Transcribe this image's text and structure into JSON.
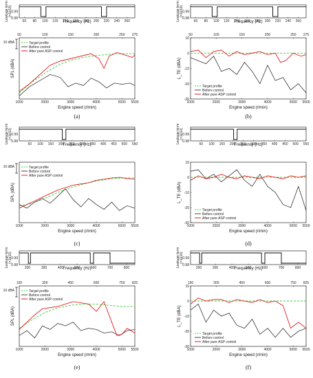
{
  "figure_labels": [
    "(a)",
    "(b)",
    "(c)",
    "(d)",
    "(e)",
    "(f)"
  ],
  "common": {
    "leakage_label": "Leakage term",
    "leakage_sub": "(×1e10)",
    "freq_label": "Frequency (Hz)",
    "engine_label": "Engine speed (r/min)",
    "spl_label": "SPL (dBA)",
    "lte_label": "L_TE (dBA)",
    "scale_marker": "10 dBA",
    "legend_left": [
      "Target profile",
      "Before control",
      "After pure ASP control"
    ],
    "legend_right": [
      "Target profile",
      "Before control",
      "After pure ASP control"
    ],
    "colors": {
      "target": "#33cc33",
      "before": "#333333",
      "after": "#e00000"
    }
  },
  "chart_data": [
    {
      "panel": "(a)",
      "type": "line",
      "leakage": {
        "xlim": [
          50,
          275
        ],
        "ticks": [
          60,
          80,
          100,
          120,
          140,
          160,
          180,
          200,
          220,
          240,
          260
        ],
        "ylim": [
          0.98,
          1.0
        ],
        "yticks": [
          0.98,
          0.99
        ],
        "dips": [
          [
            92,
            102
          ],
          [
            210,
            220
          ]
        ]
      },
      "freq_top_ticks": [
        50,
        100,
        150,
        200,
        250,
        275
      ],
      "xlim": [
        1000,
        5500
      ],
      "xticks": [
        1000,
        2000,
        3000,
        4000,
        5000,
        5500
      ],
      "series": [
        {
          "name": "Target profile",
          "x": [
            1000,
            1500,
            2000,
            2500,
            3000,
            3500,
            4000,
            4500,
            5000,
            5500
          ],
          "y": [
            0.1,
            0.28,
            0.42,
            0.55,
            0.63,
            0.68,
            0.71,
            0.73,
            0.74,
            0.74
          ]
        },
        {
          "name": "Before control",
          "x": [
            1000,
            1400,
            1800,
            2200,
            2600,
            2900,
            3200,
            3500,
            3800,
            4100,
            4400,
            4700,
            5000,
            5300,
            5500
          ],
          "y": [
            0.05,
            0.2,
            0.3,
            0.4,
            0.35,
            0.2,
            0.26,
            0.22,
            0.34,
            0.28,
            0.18,
            0.26,
            0.24,
            0.26,
            0.22
          ]
        },
        {
          "name": "After pure ASP control",
          "x": [
            1000,
            1400,
            1800,
            2200,
            2600,
            3000,
            3400,
            3800,
            4100,
            4300,
            4500,
            4800,
            5100,
            5400,
            5500
          ],
          "y": [
            0.12,
            0.25,
            0.4,
            0.55,
            0.62,
            0.66,
            0.7,
            0.74,
            0.66,
            0.5,
            0.7,
            0.76,
            0.72,
            0.68,
            0.72
          ]
        }
      ]
    },
    {
      "panel": "(b)",
      "type": "line",
      "leakage": {
        "xlim": [
          50,
          275
        ],
        "ticks": [
          60,
          80,
          100,
          120,
          140,
          160,
          180,
          200,
          220,
          240,
          260
        ],
        "ylim": [
          0.98,
          1.0
        ],
        "yticks": [
          0.98,
          0.99
        ],
        "dips": [
          [
            92,
            102
          ],
          [
            210,
            220
          ]
        ]
      },
      "freq_top_ticks": [
        50,
        100,
        150,
        200,
        250,
        275
      ],
      "xlim": [
        1000,
        5500
      ],
      "xticks": [
        1000,
        2000,
        3000,
        4000,
        5000,
        5500
      ],
      "ylim": [
        -30,
        10
      ],
      "yticks": [
        10,
        0,
        -10,
        -20,
        -30
      ],
      "series": [
        {
          "name": "Target profile",
          "x": [
            1000,
            5500
          ],
          "y": [
            0,
            0
          ]
        },
        {
          "name": "Before control",
          "x": [
            1000,
            1300,
            1600,
            1900,
            2200,
            2500,
            2800,
            3100,
            3400,
            3700,
            4000,
            4300,
            4600,
            4900,
            5200,
            5500
          ],
          "y": [
            -3,
            -5,
            -7,
            -2,
            -12,
            -10,
            -14,
            -6,
            -12,
            -20,
            -8,
            -18,
            -16,
            -24,
            -20,
            -26
          ]
        },
        {
          "name": "After pure ASP control",
          "x": [
            1000,
            1300,
            1600,
            1900,
            2200,
            2500,
            2800,
            3100,
            3400,
            3700,
            4000,
            4300,
            4500,
            4700,
            5000,
            5300,
            5500
          ],
          "y": [
            1,
            2,
            -3,
            1,
            2,
            -2,
            1,
            -1,
            0,
            1,
            -1,
            0,
            -6,
            -5,
            0,
            -2,
            -1
          ]
        }
      ]
    },
    {
      "panel": "(c)",
      "type": "line",
      "leakage": {
        "xlim": [
          0,
          550
        ],
        "ticks": [
          50,
          100,
          150,
          200,
          250,
          300,
          350,
          400,
          450,
          500,
          550
        ],
        "ylim": [
          0.98,
          1.0
        ],
        "yticks": [
          0.98,
          0.99
        ],
        "dips": [
          [
            205,
            222
          ]
        ]
      },
      "freq_top_ticks": [],
      "xlim": [
        1000,
        5500
      ],
      "xticks": [
        1000,
        2000,
        3000,
        4000,
        5000,
        5500
      ],
      "series": [
        {
          "name": "Target profile",
          "x": [
            1000,
            1500,
            2000,
            2500,
            3000,
            3500,
            4000,
            4500,
            5000,
            5500
          ],
          "y": [
            0.28,
            0.32,
            0.4,
            0.5,
            0.58,
            0.64,
            0.69,
            0.72,
            0.74,
            0.74
          ]
        },
        {
          "name": "Before control",
          "x": [
            1000,
            1300,
            1600,
            1900,
            2200,
            2500,
            2800,
            3100,
            3400,
            3700,
            4000,
            4300,
            4600,
            4900,
            5200,
            5500
          ],
          "y": [
            0.3,
            0.24,
            0.34,
            0.4,
            0.32,
            0.44,
            0.56,
            0.38,
            0.26,
            0.4,
            0.3,
            0.22,
            0.34,
            0.2,
            0.28,
            0.24
          ]
        },
        {
          "name": "After pure ASP control",
          "x": [
            1000,
            1300,
            1600,
            1900,
            2200,
            2500,
            2800,
            3100,
            3400,
            3700,
            4000,
            4300,
            4600,
            4900,
            5200,
            5500
          ],
          "y": [
            0.24,
            0.3,
            0.36,
            0.42,
            0.48,
            0.54,
            0.58,
            0.62,
            0.64,
            0.66,
            0.7,
            0.72,
            0.74,
            0.75,
            0.73,
            0.72
          ]
        }
      ]
    },
    {
      "panel": "(d)",
      "type": "line",
      "leakage": {
        "xlim": [
          0,
          550
        ],
        "ticks": [
          50,
          100,
          150,
          200,
          250,
          300,
          350,
          400,
          450,
          500,
          550
        ],
        "ylim": [
          0.98,
          1.0
        ],
        "yticks": [
          0.98,
          0.99
        ],
        "dips": [
          [
            205,
            222
          ]
        ]
      },
      "freq_top_ticks": [],
      "xlim": [
        1000,
        5500
      ],
      "xticks": [
        1000,
        2000,
        3000,
        4000,
        5000,
        5500
      ],
      "ylim": [
        -30,
        10
      ],
      "yticks": [
        10,
        0,
        -10,
        -20,
        -30
      ],
      "series": [
        {
          "name": "Target profile",
          "x": [
            1000,
            5500
          ],
          "y": [
            0,
            0
          ]
        },
        {
          "name": "Before control",
          "x": [
            1000,
            1300,
            1600,
            1900,
            2200,
            2500,
            2800,
            3100,
            3400,
            3700,
            4000,
            4300,
            4600,
            4900,
            5200,
            5500
          ],
          "y": [
            4,
            5,
            -1,
            2,
            -3,
            1,
            5,
            -2,
            -6,
            2,
            -6,
            -10,
            -18,
            -20,
            -6,
            -22
          ]
        },
        {
          "name": "After pure ASP control",
          "x": [
            1000,
            1300,
            1600,
            1900,
            2200,
            2500,
            2800,
            3100,
            3400,
            3700,
            4000,
            4300,
            4600,
            4900,
            5200,
            5500
          ],
          "y": [
            -2,
            1,
            -1,
            0,
            2,
            0,
            -1,
            1,
            0,
            -1,
            1,
            0,
            -1,
            1,
            0,
            1
          ]
        }
      ]
    },
    {
      "panel": "(e)",
      "type": "line",
      "leakage": {
        "xlim": [
          150,
          850
        ],
        "ticks": [
          200,
          300,
          400,
          500,
          600,
          700,
          800
        ],
        "ylim": [
          0.98,
          1.0
        ],
        "yticks": [
          0.98,
          0.99
        ],
        "dips": [
          [
            205,
            218
          ],
          [
            580,
            600
          ],
          [
            700,
            850
          ]
        ]
      },
      "freq_top_ticks": [
        150,
        300,
        450,
        600,
        750,
        825
      ],
      "xlim": [
        1000,
        5500
      ],
      "xticks": [
        1000,
        2000,
        3000,
        4000,
        5000,
        5500
      ],
      "series": [
        {
          "name": "Target profile",
          "x": [
            1000,
            1500,
            2000,
            2500,
            3000,
            3500,
            4000,
            4500,
            5000,
            5500
          ],
          "y": [
            0.3,
            0.44,
            0.56,
            0.64,
            0.68,
            0.7,
            0.7,
            0.68,
            0.66,
            0.66
          ]
        },
        {
          "name": "Before control",
          "x": [
            1000,
            1300,
            1600,
            1900,
            2200,
            2500,
            2800,
            3100,
            3400,
            3700,
            4000,
            4300,
            4600,
            4900,
            5200,
            5500
          ],
          "y": [
            0.18,
            0.26,
            0.14,
            0.34,
            0.28,
            0.38,
            0.34,
            0.4,
            0.26,
            0.3,
            0.28,
            0.22,
            0.24,
            0.18,
            0.26,
            0.28
          ]
        },
        {
          "name": "After pure ASP control",
          "x": [
            1000,
            1300,
            1600,
            1900,
            2200,
            2500,
            2800,
            3100,
            3400,
            3700,
            4000,
            4300,
            4600,
            4800,
            5000,
            5200,
            5500
          ],
          "y": [
            0.28,
            0.4,
            0.52,
            0.62,
            0.64,
            0.66,
            0.7,
            0.74,
            0.72,
            0.7,
            0.58,
            0.74,
            0.4,
            0.18,
            0.2,
            0.3,
            0.22
          ]
        }
      ]
    },
    {
      "panel": "(f)",
      "type": "line",
      "leakage": {
        "xlim": [
          150,
          850
        ],
        "ticks": [
          200,
          300,
          400,
          500,
          600,
          700,
          800
        ],
        "ylim": [
          0.98,
          1.0
        ],
        "yticks": [
          0.98,
          0.99
        ],
        "dips": [
          [
            205,
            218
          ],
          [
            580,
            600
          ],
          [
            700,
            850
          ]
        ]
      },
      "freq_top_ticks": [
        150,
        300,
        450,
        600,
        750,
        825
      ],
      "xlim": [
        1000,
        5500
      ],
      "xticks": [
        1000,
        2000,
        3000,
        4000,
        5000,
        5500
      ],
      "ylim": [
        -30,
        10
      ],
      "yticks": [
        10,
        0,
        -10,
        -20,
        -30
      ],
      "series": [
        {
          "name": "Target profile",
          "x": [
            1000,
            5500
          ],
          "y": [
            0,
            0
          ]
        },
        {
          "name": "Before control",
          "x": [
            1000,
            1300,
            1600,
            1900,
            2200,
            2500,
            2800,
            3100,
            3400,
            3700,
            4000,
            4300,
            4600,
            4900,
            5200,
            5500
          ],
          "y": [
            -6,
            -2,
            -14,
            -6,
            -10,
            -8,
            -16,
            -18,
            -12,
            -22,
            -18,
            -24,
            -18,
            -24,
            -20,
            -18
          ]
        },
        {
          "name": "After pure ASP control",
          "x": [
            1000,
            1300,
            1600,
            1900,
            2200,
            2500,
            2800,
            3100,
            3400,
            3700,
            4000,
            4300,
            4600,
            4900,
            5200,
            5500
          ],
          "y": [
            -2,
            2,
            0,
            1,
            1,
            -1,
            1,
            0,
            -1,
            1,
            -1,
            0,
            -3,
            -18,
            -14,
            -18
          ]
        }
      ]
    }
  ]
}
